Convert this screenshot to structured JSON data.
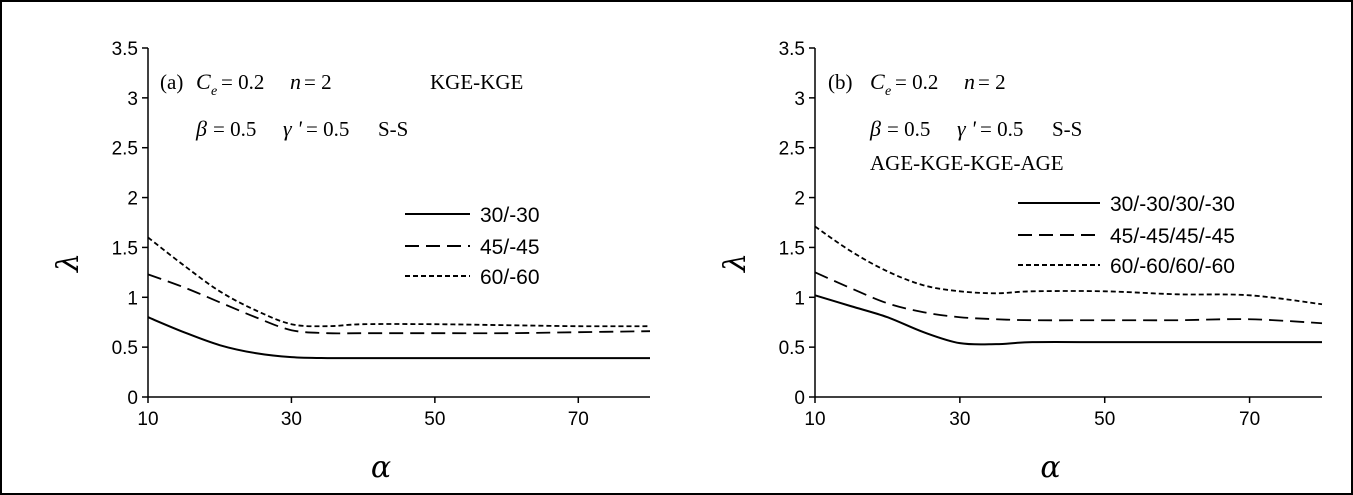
{
  "chart_data": [
    {
      "type": "line",
      "panel": "(a)",
      "annotations": {
        "panel_label": "(a)",
        "line1_ce_symbol": "C",
        "line1_ce_sub": "e",
        "line1_ce_value": "= 0.2",
        "line1_n_symbol": "n",
        "line1_n_value": "= 2",
        "line1_tag": "KGE-KGE",
        "line2_beta_symbol": "β",
        "line2_beta_value": "= 0.5",
        "line2_gamma_symbol": "γ '",
        "line2_gamma_value": "= 0.5",
        "line2_tag": "S-S"
      },
      "xlabel": "α",
      "ylabel": "λ",
      "xlim": [
        10,
        80
      ],
      "ylim": [
        0,
        3.5
      ],
      "xticks": [
        "10",
        "30",
        "50",
        "70"
      ],
      "yticks": [
        "0",
        "0.5",
        "1",
        "1.5",
        "2",
        "2.5",
        "3",
        "3.5"
      ],
      "grid": false,
      "legend_position": "right",
      "series": [
        {
          "name": "30/-30",
          "style": "solid",
          "x": [
            10,
            15,
            20,
            25,
            30,
            35,
            40,
            50,
            60,
            70,
            80
          ],
          "values": [
            0.8,
            0.65,
            0.52,
            0.44,
            0.4,
            0.39,
            0.39,
            0.39,
            0.39,
            0.39,
            0.39
          ]
        },
        {
          "name": "45/-45",
          "style": "dashed",
          "x": [
            10,
            15,
            20,
            25,
            30,
            35,
            40,
            50,
            60,
            70,
            80
          ],
          "values": [
            1.23,
            1.1,
            0.95,
            0.8,
            0.67,
            0.64,
            0.64,
            0.64,
            0.64,
            0.65,
            0.66
          ]
        },
        {
          "name": "60/-60",
          "style": "dotted",
          "x": [
            10,
            15,
            20,
            25,
            30,
            35,
            40,
            50,
            60,
            70,
            80
          ],
          "values": [
            1.6,
            1.32,
            1.06,
            0.87,
            0.73,
            0.71,
            0.73,
            0.73,
            0.72,
            0.71,
            0.71
          ]
        }
      ]
    },
    {
      "type": "line",
      "panel": "(b)",
      "annotations": {
        "panel_label": "(b)",
        "line1_ce_symbol": "C",
        "line1_ce_sub": "e",
        "line1_ce_value": "= 0.2",
        "line1_n_symbol": "n",
        "line1_n_value": "= 2",
        "line2_beta_symbol": "β",
        "line2_beta_value": "= 0.5",
        "line2_gamma_symbol": "γ '",
        "line2_gamma_value": "= 0.5",
        "line2_tag": "S-S",
        "line3_tag": "AGE-KGE-KGE-AGE"
      },
      "xlabel": "α",
      "ylabel": "λ",
      "xlim": [
        10,
        80
      ],
      "ylim": [
        0,
        3.5
      ],
      "xticks": [
        "10",
        "30",
        "50",
        "70"
      ],
      "yticks": [
        "0",
        "0.5",
        "1",
        "1.5",
        "2",
        "2.5",
        "3",
        "3.5"
      ],
      "grid": false,
      "legend_position": "right",
      "series": [
        {
          "name": "30/-30/30/-30",
          "style": "solid",
          "x": [
            10,
            15,
            20,
            25,
            30,
            35,
            40,
            50,
            60,
            70,
            80
          ],
          "values": [
            1.02,
            0.91,
            0.8,
            0.65,
            0.54,
            0.53,
            0.55,
            0.55,
            0.55,
            0.55,
            0.55
          ]
        },
        {
          "name": "45/-45/45/-45",
          "style": "dashed",
          "x": [
            10,
            15,
            20,
            25,
            30,
            35,
            40,
            50,
            60,
            70,
            80
          ],
          "values": [
            1.25,
            1.09,
            0.94,
            0.85,
            0.8,
            0.78,
            0.77,
            0.77,
            0.77,
            0.78,
            0.74
          ]
        },
        {
          "name": "60/-60/60/-60",
          "style": "dotted",
          "x": [
            10,
            15,
            20,
            25,
            30,
            35,
            40,
            50,
            60,
            70,
            80
          ],
          "values": [
            1.71,
            1.46,
            1.26,
            1.12,
            1.06,
            1.04,
            1.06,
            1.06,
            1.03,
            1.02,
            0.93
          ]
        }
      ]
    }
  ]
}
